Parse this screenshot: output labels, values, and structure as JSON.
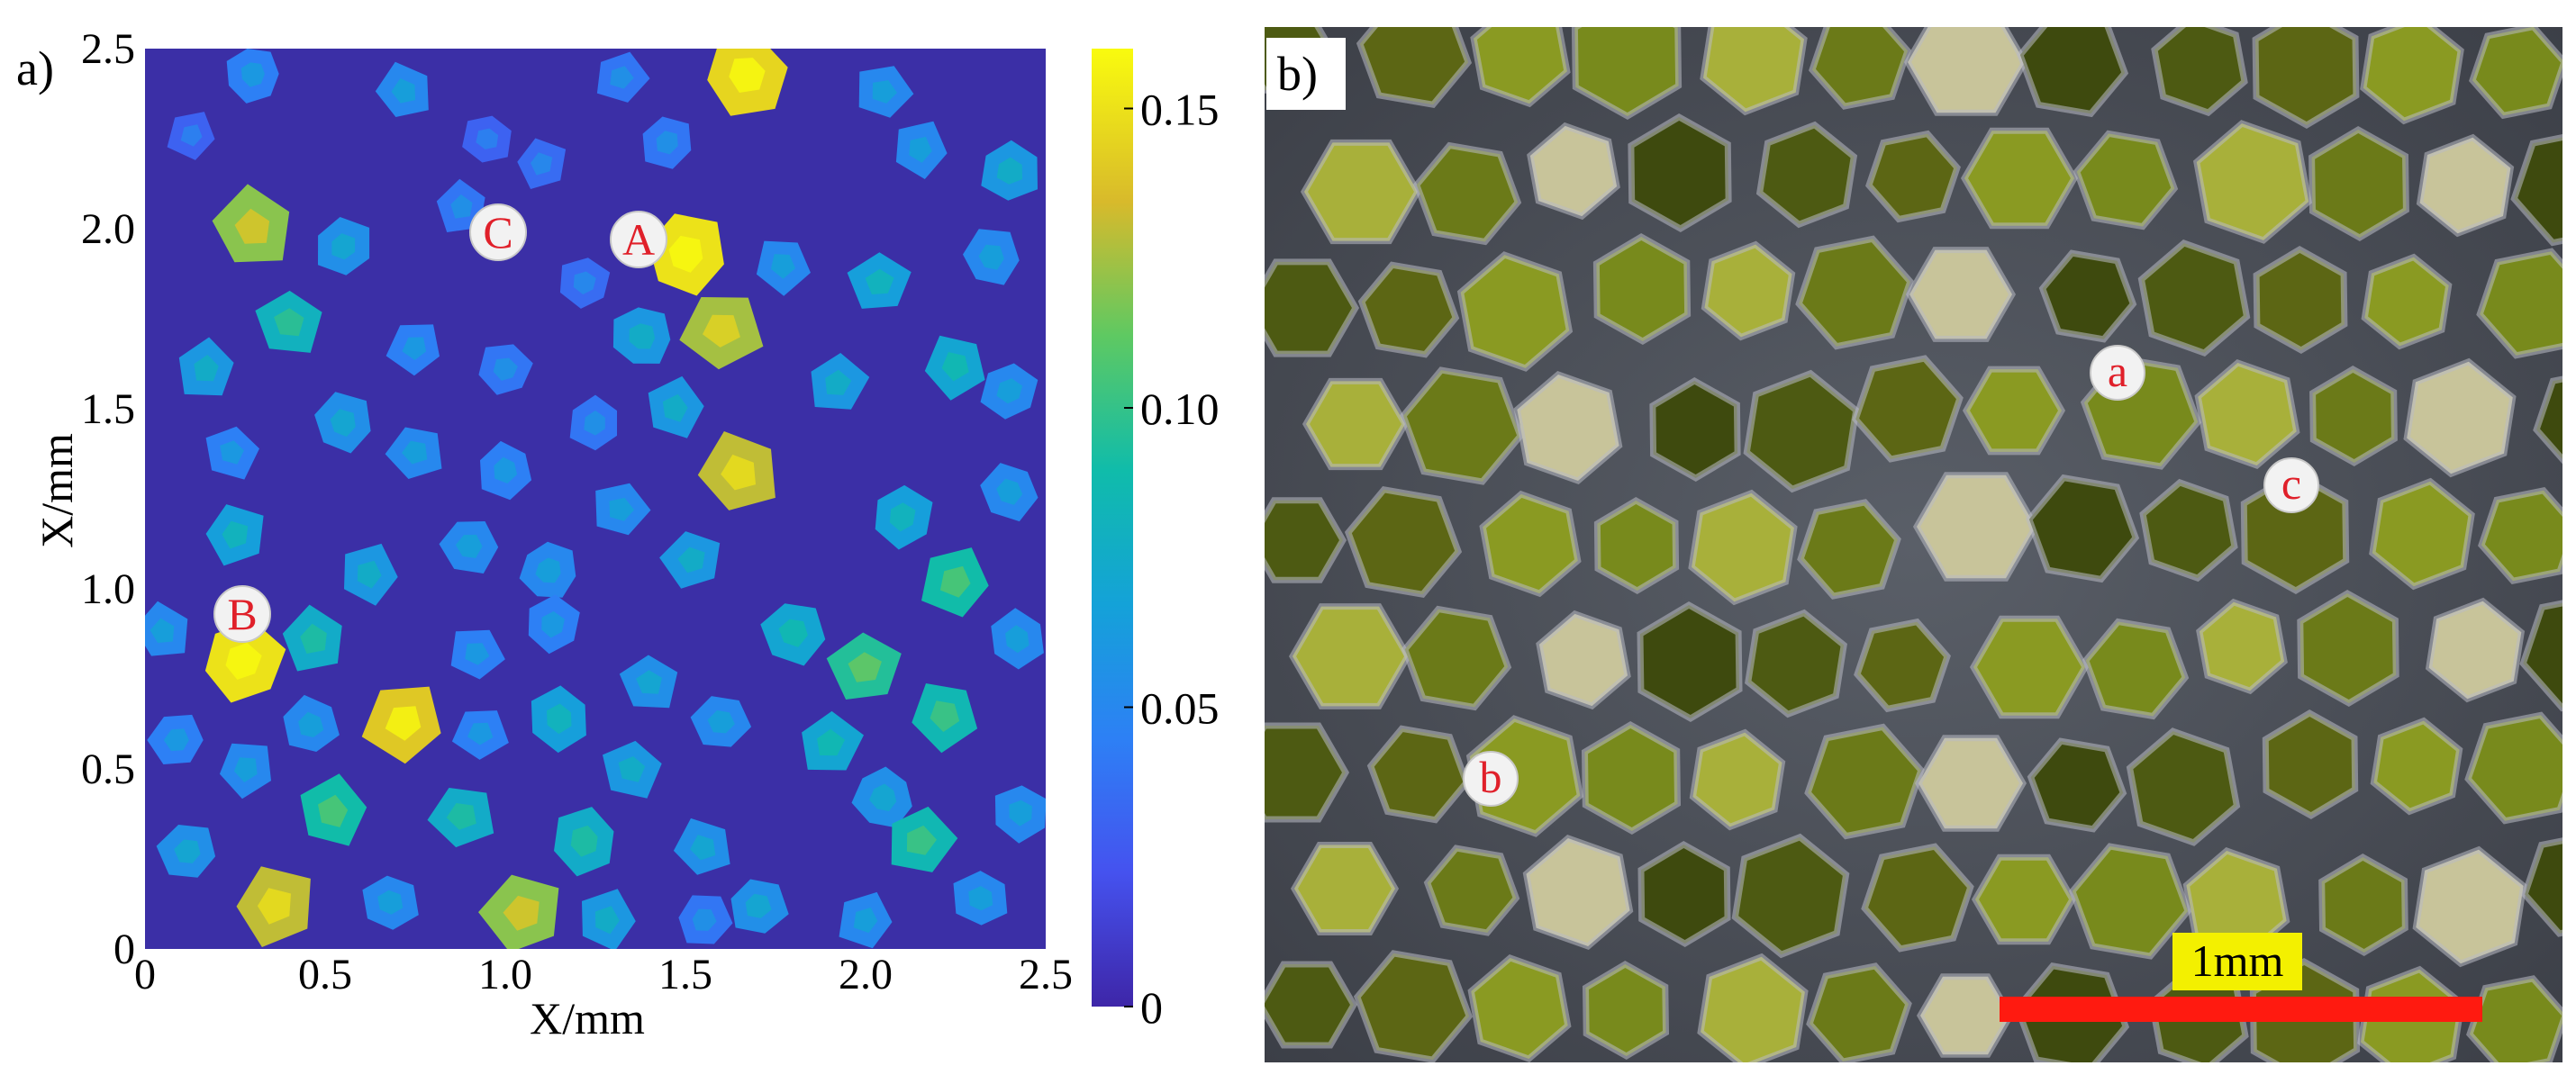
{
  "panel_a": {
    "label": "a)",
    "xlabel": "X/mm",
    "ylabel": "X/mm",
    "x_ticks": [
      "0",
      "0.5",
      "1.0",
      "1.5",
      "2.0",
      "2.5"
    ],
    "y_ticks": [
      "0",
      "0.5",
      "1.0",
      "1.5",
      "2.0",
      "2.5"
    ],
    "colorbar_ticks": [
      "0",
      "0.05",
      "0.10",
      "0.15"
    ],
    "markers": [
      "A",
      "B",
      "C"
    ]
  },
  "panel_b": {
    "label": "b)",
    "markers": [
      "a",
      "b",
      "c"
    ],
    "scale_bar_label": "1mm"
  },
  "colors": {
    "background": "#3b2fa6",
    "marker_text": "#e0202a",
    "scale_bar": "#ff1a10",
    "scale_label_bg": "#f3f000"
  },
  "chart_data": {
    "type": "heatmap",
    "x_range": [
      0,
      2.5
    ],
    "y_range": [
      0,
      2.5
    ],
    "x_units": "mm",
    "y_units": "mm",
    "color_range": [
      0,
      0.16
    ],
    "colormap": "parula",
    "markers": [
      {
        "label": "A",
        "x": 1.37,
        "y": 1.97
      },
      {
        "label": "B",
        "x": 0.27,
        "y": 0.93
      },
      {
        "label": "C",
        "x": 0.98,
        "y": 1.99
      }
    ],
    "grains": [
      {
        "x": 0.3,
        "y": 2.43,
        "v": 0.045
      },
      {
        "x": 0.72,
        "y": 2.38,
        "v": 0.05
      },
      {
        "x": 1.32,
        "y": 2.42,
        "v": 0.04
      },
      {
        "x": 1.67,
        "y": 2.43,
        "v": 0.145
      },
      {
        "x": 2.05,
        "y": 2.38,
        "v": 0.05
      },
      {
        "x": 1.1,
        "y": 2.18,
        "v": 0.035
      },
      {
        "x": 0.95,
        "y": 2.25,
        "v": 0.03
      },
      {
        "x": 1.45,
        "y": 2.24,
        "v": 0.04
      },
      {
        "x": 2.15,
        "y": 2.22,
        "v": 0.05
      },
      {
        "x": 2.4,
        "y": 2.16,
        "v": 0.06
      },
      {
        "x": 0.13,
        "y": 2.26,
        "v": 0.03
      },
      {
        "x": 0.3,
        "y": 2.0,
        "v": 0.12
      },
      {
        "x": 0.55,
        "y": 1.95,
        "v": 0.055
      },
      {
        "x": 0.88,
        "y": 2.06,
        "v": 0.04
      },
      {
        "x": 1.22,
        "y": 1.85,
        "v": 0.035
      },
      {
        "x": 1.5,
        "y": 1.93,
        "v": 0.15
      },
      {
        "x": 1.77,
        "y": 1.9,
        "v": 0.05
      },
      {
        "x": 2.04,
        "y": 1.85,
        "v": 0.065
      },
      {
        "x": 2.35,
        "y": 1.92,
        "v": 0.05
      },
      {
        "x": 0.4,
        "y": 1.74,
        "v": 0.08
      },
      {
        "x": 0.75,
        "y": 1.67,
        "v": 0.045
      },
      {
        "x": 1.38,
        "y": 1.7,
        "v": 0.06
      },
      {
        "x": 1.6,
        "y": 1.72,
        "v": 0.125
      },
      {
        "x": 0.17,
        "y": 1.61,
        "v": 0.06
      },
      {
        "x": 1.0,
        "y": 1.61,
        "v": 0.04
      },
      {
        "x": 1.92,
        "y": 1.57,
        "v": 0.06
      },
      {
        "x": 2.25,
        "y": 1.62,
        "v": 0.07
      },
      {
        "x": 2.4,
        "y": 1.55,
        "v": 0.05
      },
      {
        "x": 0.55,
        "y": 1.46,
        "v": 0.055
      },
      {
        "x": 0.24,
        "y": 1.38,
        "v": 0.045
      },
      {
        "x": 1.25,
        "y": 1.46,
        "v": 0.04
      },
      {
        "x": 1.47,
        "y": 1.5,
        "v": 0.06
      },
      {
        "x": 0.75,
        "y": 1.38,
        "v": 0.05
      },
      {
        "x": 1.0,
        "y": 1.33,
        "v": 0.045
      },
      {
        "x": 1.65,
        "y": 1.32,
        "v": 0.13
      },
      {
        "x": 2.1,
        "y": 1.2,
        "v": 0.065
      },
      {
        "x": 2.4,
        "y": 1.27,
        "v": 0.05
      },
      {
        "x": 1.32,
        "y": 1.22,
        "v": 0.05
      },
      {
        "x": 0.25,
        "y": 1.15,
        "v": 0.065
      },
      {
        "x": 0.9,
        "y": 1.12,
        "v": 0.05
      },
      {
        "x": 1.52,
        "y": 1.08,
        "v": 0.06
      },
      {
        "x": 0.62,
        "y": 1.04,
        "v": 0.06
      },
      {
        "x": 1.12,
        "y": 1.05,
        "v": 0.05
      },
      {
        "x": 2.25,
        "y": 1.02,
        "v": 0.09
      },
      {
        "x": 0.05,
        "y": 0.88,
        "v": 0.05
      },
      {
        "x": 0.27,
        "y": 0.8,
        "v": 0.15
      },
      {
        "x": 0.47,
        "y": 0.86,
        "v": 0.075
      },
      {
        "x": 0.92,
        "y": 0.82,
        "v": 0.045
      },
      {
        "x": 1.13,
        "y": 0.9,
        "v": 0.045
      },
      {
        "x": 1.8,
        "y": 0.88,
        "v": 0.07
      },
      {
        "x": 2.0,
        "y": 0.78,
        "v": 0.095
      },
      {
        "x": 2.42,
        "y": 0.86,
        "v": 0.05
      },
      {
        "x": 1.4,
        "y": 0.74,
        "v": 0.055
      },
      {
        "x": 0.72,
        "y": 0.63,
        "v": 0.14
      },
      {
        "x": 0.46,
        "y": 0.62,
        "v": 0.05
      },
      {
        "x": 0.93,
        "y": 0.6,
        "v": 0.045
      },
      {
        "x": 1.15,
        "y": 0.64,
        "v": 0.065
      },
      {
        "x": 1.6,
        "y": 0.63,
        "v": 0.05
      },
      {
        "x": 1.9,
        "y": 0.57,
        "v": 0.07
      },
      {
        "x": 2.22,
        "y": 0.65,
        "v": 0.085
      },
      {
        "x": 0.09,
        "y": 0.58,
        "v": 0.045
      },
      {
        "x": 0.28,
        "y": 0.5,
        "v": 0.05
      },
      {
        "x": 1.35,
        "y": 0.5,
        "v": 0.06
      },
      {
        "x": 2.05,
        "y": 0.42,
        "v": 0.055
      },
      {
        "x": 0.52,
        "y": 0.38,
        "v": 0.09
      },
      {
        "x": 0.88,
        "y": 0.37,
        "v": 0.075
      },
      {
        "x": 1.22,
        "y": 0.3,
        "v": 0.075
      },
      {
        "x": 1.55,
        "y": 0.28,
        "v": 0.055
      },
      {
        "x": 2.15,
        "y": 0.3,
        "v": 0.085
      },
      {
        "x": 2.43,
        "y": 0.38,
        "v": 0.05
      },
      {
        "x": 0.12,
        "y": 0.27,
        "v": 0.055
      },
      {
        "x": 0.36,
        "y": 0.12,
        "v": 0.13
      },
      {
        "x": 0.68,
        "y": 0.13,
        "v": 0.05
      },
      {
        "x": 1.05,
        "y": 0.1,
        "v": 0.12
      },
      {
        "x": 1.28,
        "y": 0.08,
        "v": 0.06
      },
      {
        "x": 1.7,
        "y": 0.12,
        "v": 0.055
      },
      {
        "x": 2.0,
        "y": 0.08,
        "v": 0.05
      },
      {
        "x": 2.32,
        "y": 0.14,
        "v": 0.05
      },
      {
        "x": 1.55,
        "y": 0.08,
        "v": 0.04
      }
    ]
  }
}
